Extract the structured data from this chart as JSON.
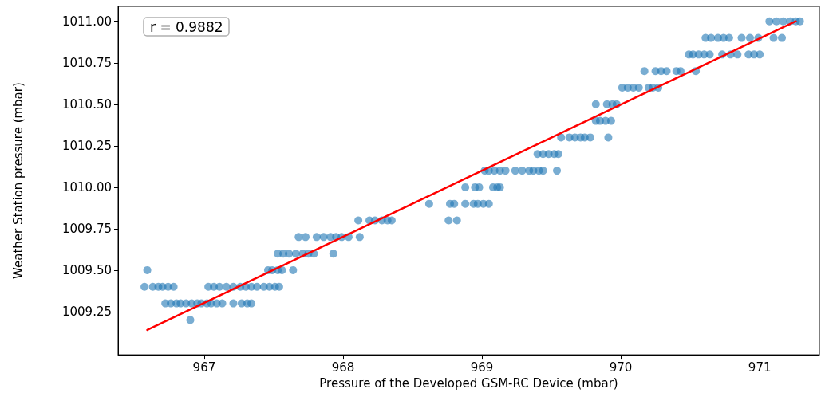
{
  "chart_data": {
    "type": "scatter",
    "xlabel": "Pressure of the Developed GSM-RC Device (mbar)",
    "ylabel": "Weather Station pressure (mbar)",
    "annotations": [
      "r = 0.9882"
    ],
    "xlim": [
      966.38,
      971.43
    ],
    "ylim": [
      1008.99,
      1011.09
    ],
    "xticks": [
      967,
      968,
      969,
      970,
      971
    ],
    "yticks": [
      1009.25,
      {
        "value": 1009.5,
        "label": "1009.50"
      },
      1009.75,
      {
        "value": 1010,
        "label": "1010.00"
      },
      1010.25,
      {
        "value": 1010.5,
        "label": "1010.50"
      },
      1010.75,
      {
        "value": 1011,
        "label": "1011.00"
      }
    ],
    "grid": false,
    "marker": "circle",
    "series": [
      {
        "type": "scatter",
        "color": "#1f77b4",
        "x": [
          966.59,
          967.46,
          967.49,
          967.53,
          967.56,
          967.64,
          966.57,
          966.63,
          966.67,
          966.7,
          966.74,
          966.78,
          967.03,
          967.07,
          967.11,
          967.16,
          967.21,
          967.26,
          967.3,
          967.34,
          967.38,
          967.43,
          967.47,
          967.51,
          967.54,
          966.72,
          966.76,
          966.8,
          966.83,
          966.87,
          966.91,
          966.95,
          966.98,
          967.02,
          967.05,
          967.09,
          967.13,
          967.21,
          967.27,
          967.31,
          967.34,
          966.9,
          967.53,
          967.57,
          967.61,
          967.66,
          967.71,
          967.75,
          967.79,
          967.93,
          967.68,
          967.73,
          967.81,
          967.86,
          967.91,
          967.95,
          967.99,
          968.04,
          968.12,
          968.11,
          968.19,
          968.23,
          968.28,
          968.32,
          968.35,
          968.76,
          968.82,
          968.62,
          968.77,
          968.8,
          968.88,
          968.94,
          968.97,
          969.01,
          969.05,
          968.88,
          968.95,
          968.98,
          969.08,
          969.11,
          969.13,
          969.02,
          969.05,
          969.09,
          969.13,
          969.17,
          969.24,
          969.29,
          969.34,
          969.37,
          969.41,
          969.44,
          969.54,
          969.4,
          969.44,
          969.48,
          969.52,
          969.55,
          969.57,
          969.63,
          969.67,
          969.71,
          969.74,
          969.78,
          969.91,
          969.82,
          969.85,
          969.89,
          969.93,
          969.82,
          969.9,
          969.94,
          969.97,
          970.01,
          970.05,
          970.09,
          970.13,
          970.2,
          970.23,
          970.27,
          970.17,
          970.25,
          970.29,
          970.33,
          970.4,
          970.43,
          970.54,
          970.49,
          970.52,
          970.56,
          970.6,
          970.64,
          970.73,
          970.79,
          970.84,
          970.92,
          970.96,
          971.0,
          970.61,
          970.65,
          970.7,
          970.74,
          970.78,
          970.87,
          970.93,
          970.99,
          971.1,
          971.16,
          971.07,
          971.12,
          971.17,
          971.22,
          971.26,
          971.29
        ],
        "values": [
          1009.5,
          1009.5,
          1009.5,
          1009.5,
          1009.5,
          1009.5,
          1009.4,
          1009.4,
          1009.4,
          1009.4,
          1009.4,
          1009.4,
          1009.4,
          1009.4,
          1009.4,
          1009.4,
          1009.4,
          1009.4,
          1009.4,
          1009.4,
          1009.4,
          1009.4,
          1009.4,
          1009.4,
          1009.4,
          1009.3,
          1009.3,
          1009.3,
          1009.3,
          1009.3,
          1009.3,
          1009.3,
          1009.3,
          1009.3,
          1009.3,
          1009.3,
          1009.3,
          1009.3,
          1009.3,
          1009.3,
          1009.3,
          1009.2,
          1009.6,
          1009.6,
          1009.6,
          1009.6,
          1009.6,
          1009.6,
          1009.6,
          1009.6,
          1009.7,
          1009.7,
          1009.7,
          1009.7,
          1009.7,
          1009.7,
          1009.7,
          1009.7,
          1009.7,
          1009.8,
          1009.8,
          1009.8,
          1009.8,
          1009.8,
          1009.8,
          1009.8,
          1009.8,
          1009.9,
          1009.9,
          1009.9,
          1009.9,
          1009.9,
          1009.9,
          1009.9,
          1009.9,
          1010.0,
          1010.0,
          1010.0,
          1010.0,
          1010.0,
          1010.0,
          1010.1,
          1010.1,
          1010.1,
          1010.1,
          1010.1,
          1010.1,
          1010.1,
          1010.1,
          1010.1,
          1010.1,
          1010.1,
          1010.1,
          1010.2,
          1010.2,
          1010.2,
          1010.2,
          1010.2,
          1010.3,
          1010.3,
          1010.3,
          1010.3,
          1010.3,
          1010.3,
          1010.3,
          1010.4,
          1010.4,
          1010.4,
          1010.4,
          1010.5,
          1010.5,
          1010.5,
          1010.5,
          1010.6,
          1010.6,
          1010.6,
          1010.6,
          1010.6,
          1010.6,
          1010.6,
          1010.7,
          1010.7,
          1010.7,
          1010.7,
          1010.7,
          1010.7,
          1010.7,
          1010.8,
          1010.8,
          1010.8,
          1010.8,
          1010.8,
          1010.8,
          1010.8,
          1010.8,
          1010.8,
          1010.8,
          1010.8,
          1010.9,
          1010.9,
          1010.9,
          1010.9,
          1010.9,
          1010.9,
          1010.9,
          1010.9,
          1010.9,
          1010.9,
          1011.0,
          1011.0,
          1011.0,
          1011.0,
          1011.0,
          1011.0
        ]
      },
      {
        "type": "line",
        "color": "#ff0000",
        "marker": "none",
        "line_style": "solid",
        "x": [
          966.59,
          971.26
        ],
        "values": [
          1009.14,
          1011.0
        ]
      }
    ]
  }
}
